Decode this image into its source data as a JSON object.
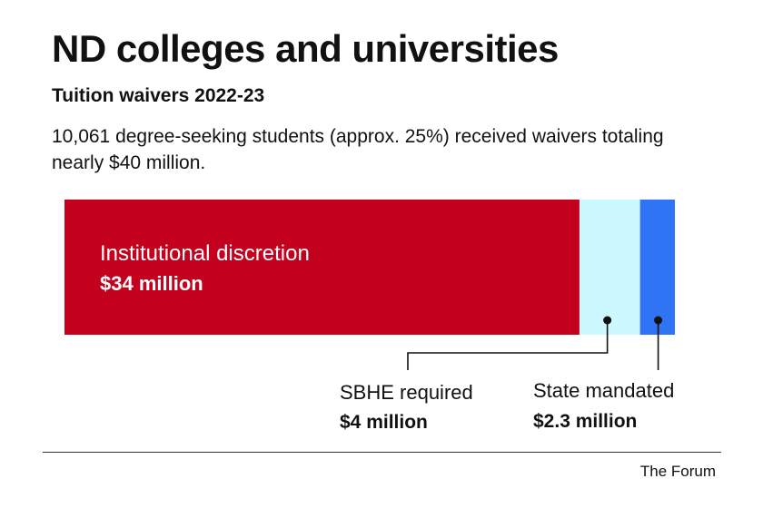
{
  "title": "ND colleges and universities",
  "subtitle": "Tuition waivers 2022-23",
  "description": "10,061 degree-seeking students (approx. 25%) received waivers totaling nearly $40 million.",
  "source": "The Forum",
  "chart_data": {
    "type": "bar",
    "orientation": "horizontal-stacked",
    "title": "Tuition waivers 2022-23",
    "unit": "million USD",
    "segments": [
      {
        "name": "Institutional discretion",
        "value": 34,
        "value_label": "$34 million",
        "color": "#c4001f"
      },
      {
        "name": "SBHE required",
        "value": 4,
        "value_label": "$4 million",
        "color": "#ccf8ff"
      },
      {
        "name": "State mandated",
        "value": 2.3,
        "value_label": "$2.3 million",
        "color": "#2f74f5"
      }
    ],
    "total_label": "nearly $40 million",
    "grid": false,
    "legend": "none"
  }
}
